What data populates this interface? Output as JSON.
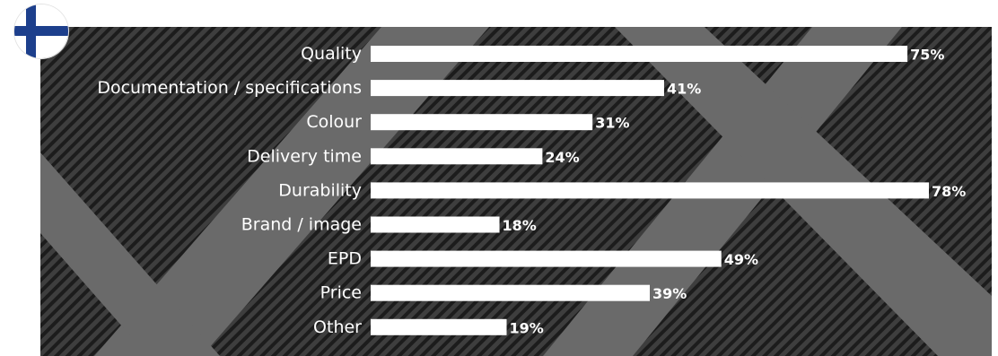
{
  "flag": {
    "icon": "finland-flag-icon",
    "background": "#ffffff",
    "cross_color": "#1d3f8c"
  },
  "colors": {
    "bar": "#ffffff",
    "text": "#ffffff",
    "background_base": "#3e3e3e",
    "background_stripe": "#1c1c1c",
    "background_band": "#6a6a6a"
  },
  "chart_data": {
    "type": "bar",
    "orientation": "horizontal",
    "title": "",
    "xlabel": "",
    "ylabel": "",
    "categories": [
      "Quality",
      "Documentation / specifications",
      "Colour",
      "Delivery time",
      "Durability",
      "Brand / image",
      "EPD",
      "Price",
      "Other"
    ],
    "values": [
      75,
      41,
      31,
      24,
      78,
      18,
      49,
      39,
      19
    ],
    "value_labels": [
      "75%",
      "41%",
      "31%",
      "24%",
      "78%",
      "18%",
      "49%",
      "39%",
      "19%"
    ],
    "unit": "%",
    "xlim": [
      0,
      78
    ],
    "grid": false,
    "legend": "none"
  }
}
